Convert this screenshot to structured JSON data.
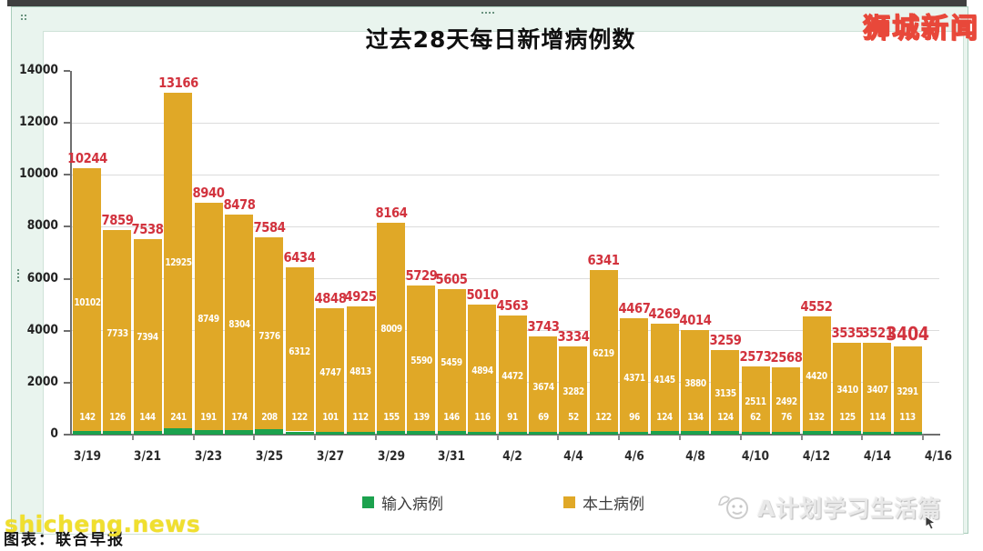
{
  "branding": {
    "site_logo": "狮城新闻",
    "watermark": "shicheng.news",
    "caption": "图表：联合早报",
    "footer_logo": "A计划学习生活篇"
  },
  "chart_data": {
    "type": "bar",
    "stacked": true,
    "title": "过去28天每日新增病例数",
    "xlabel": "",
    "ylabel": "",
    "ylim": [
      0,
      14000
    ],
    "yticks": [
      0,
      2000,
      4000,
      6000,
      8000,
      10000,
      12000,
      14000
    ],
    "xtick_labels": [
      "3/19",
      "3/21",
      "3/23",
      "3/25",
      "3/27",
      "3/29",
      "3/31",
      "4/2",
      "4/4",
      "4/6",
      "4/8",
      "4/10",
      "4/12",
      "4/14",
      "4/16"
    ],
    "grid": true,
    "legend_position": "bottom",
    "legend": [
      {
        "label": "输入病例",
        "color": "#1CA24E"
      },
      {
        "label": "本土病例",
        "color": "#E0A827"
      }
    ],
    "colors": {
      "imported": "#1CA24E",
      "local": "#E0A827",
      "total_label": "#D2333E",
      "inner_label": "#FFFFFF"
    },
    "series": [
      {
        "name": "输入病例",
        "values": [
          142,
          126,
          144,
          241,
          191,
          174,
          208,
          122,
          101,
          112,
          155,
          139,
          146,
          116,
          91,
          69,
          52,
          122,
          96,
          124,
          134,
          124,
          62,
          76,
          132,
          125,
          114,
          113
        ]
      },
      {
        "name": "本土病例",
        "values": [
          10102,
          7733,
          7394,
          12925,
          8749,
          8304,
          7376,
          6312,
          4747,
          4813,
          8009,
          5590,
          5459,
          4894,
          4472,
          3674,
          3282,
          6219,
          4371,
          4145,
          3880,
          3135,
          2511,
          2492,
          4420,
          3410,
          3407,
          3291
        ]
      }
    ],
    "totals": [
      10244,
      7859,
      7538,
      13166,
      8940,
      8478,
      7584,
      6434,
      4848,
      4925,
      8164,
      5729,
      5605,
      5010,
      4563,
      3743,
      3334,
      6341,
      4467,
      4269,
      4014,
      3259,
      2573,
      2568,
      4552,
      3535,
      3521,
      3404
    ],
    "highlight_last_total": true
  }
}
